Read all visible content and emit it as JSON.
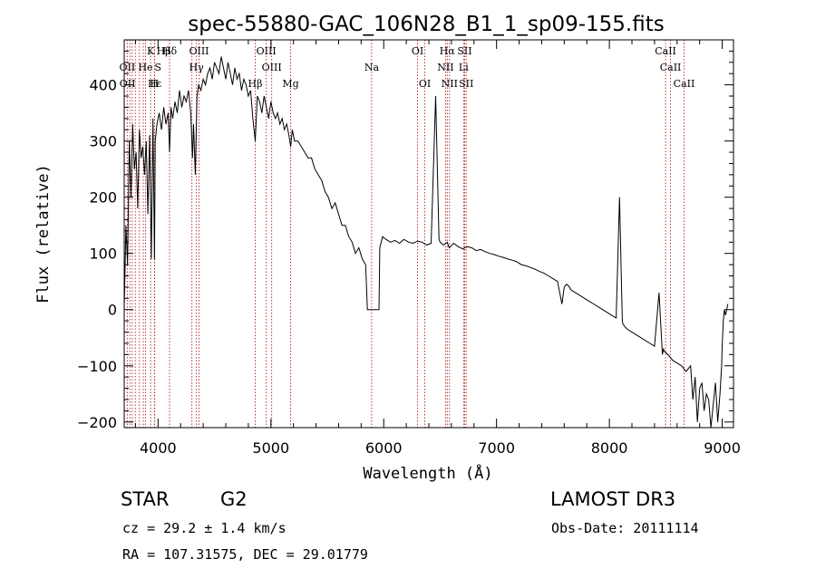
{
  "chart_data": {
    "type": "line",
    "title": "spec-55880-GAC_106N28_B1_1_sp09-155.fits",
    "xlabel": "Wavelength (Å)",
    "ylabel": "Flux (relative)",
    "xlim": [
      3700,
      9100
    ],
    "ylim": [
      -210,
      480
    ],
    "xticks": [
      4000,
      5000,
      6000,
      7000,
      8000,
      9000
    ],
    "yticks": [
      -200,
      -100,
      0,
      100,
      200,
      300,
      400
    ],
    "series": [
      {
        "name": "flux",
        "x": [
          3700,
          3715,
          3730,
          3745,
          3760,
          3775,
          3790,
          3805,
          3820,
          3835,
          3850,
          3865,
          3880,
          3895,
          3910,
          3925,
          3933,
          3940,
          3955,
          3968,
          3975,
          3990,
          4010,
          4030,
          4050,
          4070,
          4090,
          4102,
          4115,
          4130,
          4150,
          4170,
          4190,
          4210,
          4230,
          4250,
          4270,
          4290,
          4305,
          4315,
          4330,
          4345,
          4360,
          4380,
          4400,
          4420,
          4440,
          4460,
          4480,
          4500,
          4520,
          4540,
          4560,
          4580,
          4600,
          4620,
          4640,
          4660,
          4680,
          4700,
          4720,
          4740,
          4760,
          4780,
          4800,
          4820,
          4840,
          4861,
          4880,
          4900,
          4920,
          4940,
          4960,
          4980,
          5000,
          5020,
          5040,
          5060,
          5080,
          5100,
          5120,
          5140,
          5160,
          5175,
          5190,
          5210,
          5240,
          5270,
          5300,
          5330,
          5360,
          5390,
          5420,
          5450,
          5480,
          5510,
          5540,
          5570,
          5600,
          5630,
          5660,
          5690,
          5720,
          5750,
          5780,
          5810,
          5840,
          5855,
          5862,
          5870,
          5900,
          5930,
          5950,
          5958,
          5965,
          5990,
          6020,
          6060,
          6100,
          6140,
          6180,
          6220,
          6260,
          6300,
          6340,
          6380,
          6420,
          6460,
          6490,
          6500,
          6510,
          6530,
          6563,
          6580,
          6620,
          6660,
          6700,
          6740,
          6780,
          6820,
          6860,
          6900,
          6940,
          6980,
          7020,
          7060,
          7100,
          7140,
          7180,
          7220,
          7260,
          7300,
          7340,
          7380,
          7420,
          7460,
          7500,
          7540,
          7580,
          7600,
          7620,
          7640,
          7660,
          7700,
          7740,
          7780,
          7820,
          7860,
          7900,
          7940,
          7980,
          8020,
          8060,
          8090,
          8110,
          8115,
          8120,
          8135,
          8160,
          8200,
          8240,
          8280,
          8320,
          8360,
          8400,
          8440,
          8470,
          8480,
          8490,
          8520,
          8560,
          8600,
          8640,
          8680,
          8720,
          8740,
          8760,
          8780,
          8800,
          8820,
          8840,
          8860,
          8880,
          8900,
          8920,
          8940,
          8960,
          8980,
          8995,
          9000,
          9010,
          9020,
          9030,
          9040,
          9050
        ],
        "y": [
          0,
          150,
          80,
          300,
          200,
          330,
          250,
          280,
          180,
          320,
          270,
          290,
          240,
          300,
          170,
          310,
          200,
          90,
          340,
          90,
          300,
          330,
          350,
          320,
          360,
          330,
          350,
          280,
          360,
          340,
          370,
          350,
          390,
          360,
          380,
          370,
          390,
          350,
          270,
          330,
          240,
          380,
          400,
          390,
          410,
          400,
          420,
          430,
          410,
          440,
          430,
          420,
          450,
          430,
          410,
          440,
          420,
          400,
          430,
          410,
          420,
          390,
          410,
          400,
          380,
          390,
          340,
          300,
          380,
          370,
          350,
          380,
          360,
          340,
          370,
          350,
          340,
          350,
          330,
          340,
          320,
          330,
          310,
          290,
          320,
          300,
          300,
          290,
          280,
          270,
          270,
          250,
          240,
          230,
          210,
          200,
          180,
          190,
          170,
          150,
          150,
          130,
          120,
          100,
          110,
          90,
          80,
          0,
          0,
          0,
          0,
          0,
          0,
          0,
          110,
          130,
          125,
          120,
          123,
          118,
          125,
          120,
          118,
          122,
          120,
          115,
          118,
          380,
          125,
          120,
          118,
          115,
          120,
          110,
          118,
          112,
          108,
          112,
          110,
          105,
          107,
          103,
          100,
          98,
          95,
          93,
          90,
          88,
          85,
          80,
          78,
          75,
          72,
          68,
          65,
          60,
          55,
          50,
          10,
          40,
          45,
          42,
          35,
          30,
          25,
          20,
          15,
          10,
          5,
          0,
          -5,
          -10,
          -15,
          200,
          20,
          -20,
          -25,
          -30,
          -35,
          -40,
          -45,
          -50,
          -55,
          -60,
          -65,
          30,
          -80,
          -70,
          -75,
          -80,
          -90,
          -95,
          -100,
          -110,
          -100,
          -160,
          -120,
          -200,
          -140,
          -130,
          -180,
          -150,
          -160,
          -210,
          -170,
          -130,
          -200,
          -150,
          -100,
          -60,
          -20,
          0,
          -10,
          0,
          10
        ]
      }
    ],
    "line_labels": [
      {
        "text": "Hδ",
        "x": 4102,
        "row": 1
      },
      {
        "text": "K",
        "x": 3934,
        "row": 1
      },
      {
        "text": "Hβ",
        "x": 4050,
        "row": 1
      },
      {
        "text": "OIII",
        "x": 4363,
        "row": 1
      },
      {
        "text": "OIII",
        "x": 4959,
        "row": 1
      },
      {
        "text": "OI",
        "x": 6300,
        "row": 1
      },
      {
        "text": "Hα",
        "x": 6563,
        "row": 1
      },
      {
        "text": "SII",
        "x": 6717,
        "row": 1
      },
      {
        "text": "CaII",
        "x": 8498,
        "row": 1
      },
      {
        "text": "OII",
        "x": 3727,
        "row": 2
      },
      {
        "text": "He",
        "x": 3889,
        "row": 2
      },
      {
        "text": "S",
        "x": 4000,
        "row": 2
      },
      {
        "text": "Hγ",
        "x": 4340,
        "row": 2
      },
      {
        "text": "OIII",
        "x": 5007,
        "row": 2
      },
      {
        "text": "Na",
        "x": 5893,
        "row": 2
      },
      {
        "text": "NII",
        "x": 6548,
        "row": 2
      },
      {
        "text": "Li",
        "x": 6708,
        "row": 2
      },
      {
        "text": "CaII",
        "x": 8542,
        "row": 2
      },
      {
        "text": "OII",
        "x": 3729,
        "row": 3
      },
      {
        "text": "Hε",
        "x": 3970,
        "row": 3
      },
      {
        "text": "H",
        "x": 3968,
        "row": 3
      },
      {
        "text": "Hβ",
        "x": 4861,
        "row": 3
      },
      {
        "text": "Mg",
        "x": 5175,
        "row": 3
      },
      {
        "text": "OI",
        "x": 6364,
        "row": 3
      },
      {
        "text": "NII",
        "x": 6583,
        "row": 3
      },
      {
        "text": "SII",
        "x": 6731,
        "row": 3
      },
      {
        "text": "CaII",
        "x": 8662,
        "row": 3
      }
    ],
    "line_positions": [
      3727,
      3750,
      3771,
      3798,
      3835,
      3869,
      3889,
      3934,
      3968,
      3970,
      4102,
      4300,
      4340,
      4363,
      4861,
      4959,
      5007,
      5175,
      5893,
      6300,
      6364,
      6548,
      6563,
      6583,
      6708,
      6717,
      6731,
      8498,
      8542,
      8662
    ]
  },
  "footer": {
    "object_type": "STAR",
    "subclass": "G2",
    "survey": "LAMOST DR3",
    "cz": "cz = 29.2 ± 1.4 km/s",
    "obs_date": "Obs-Date: 20111114",
    "coords": "RA = 107.31575, DEC =  29.01779"
  },
  "colors": {
    "spectrum": "#000000",
    "line_markers": "#b22222",
    "axes": "#000000"
  }
}
